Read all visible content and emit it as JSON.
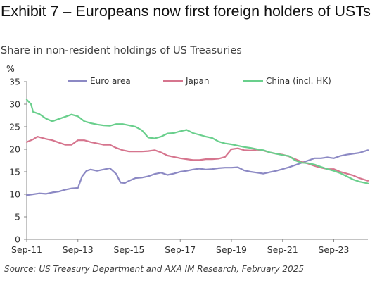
{
  "exhibit": {
    "title": "Exhibit 7 – Europeans now first foreign holders of USTs"
  },
  "source": "Source: US Treasury Department and AXA IM Research, February 2025",
  "colors": {
    "euro": "#8c89c4",
    "japan": "#d6758e",
    "china": "#69cf8c",
    "axis": "#8a8a8a"
  },
  "chart_data": {
    "type": "line",
    "title": "Share in non-resident holdings of US Treasuries",
    "ylabel": "%",
    "ylim": [
      0,
      35
    ],
    "yticks": [
      0,
      5,
      10,
      15,
      20,
      25,
      30,
      35
    ],
    "xlim": [
      "2011-09",
      "2025-01"
    ],
    "xticks": [
      "Sep-11",
      "Sep-13",
      "Sep-15",
      "Sep-17",
      "Sep-19",
      "Sep-21",
      "Sep-23"
    ],
    "xtick_dates": [
      "2011-09",
      "2013-09",
      "2015-09",
      "2017-09",
      "2019-09",
      "2021-09",
      "2023-09"
    ],
    "legend_position": "top",
    "series": [
      {
        "name": "Euro area",
        "color": "#8c89c4",
        "points": [
          [
            "2011-09",
            9.8
          ],
          [
            "2011-12",
            10.0
          ],
          [
            "2012-03",
            10.2
          ],
          [
            "2012-06",
            10.1
          ],
          [
            "2012-09",
            10.4
          ],
          [
            "2012-12",
            10.6
          ],
          [
            "2013-03",
            11.0
          ],
          [
            "2013-06",
            11.3
          ],
          [
            "2013-09",
            11.4
          ],
          [
            "2013-11",
            14.0
          ],
          [
            "2014-01",
            15.2
          ],
          [
            "2014-03",
            15.5
          ],
          [
            "2014-06",
            15.2
          ],
          [
            "2014-09",
            15.5
          ],
          [
            "2014-12",
            15.8
          ],
          [
            "2015-03",
            14.5
          ],
          [
            "2015-05",
            12.6
          ],
          [
            "2015-07",
            12.5
          ],
          [
            "2015-09",
            13.0
          ],
          [
            "2015-12",
            13.6
          ],
          [
            "2016-03",
            13.7
          ],
          [
            "2016-06",
            14.0
          ],
          [
            "2016-09",
            14.5
          ],
          [
            "2016-12",
            14.8
          ],
          [
            "2017-03",
            14.3
          ],
          [
            "2017-06",
            14.6
          ],
          [
            "2017-09",
            15.0
          ],
          [
            "2017-12",
            15.2
          ],
          [
            "2018-03",
            15.5
          ],
          [
            "2018-06",
            15.7
          ],
          [
            "2018-09",
            15.5
          ],
          [
            "2018-12",
            15.6
          ],
          [
            "2019-03",
            15.8
          ],
          [
            "2019-06",
            15.9
          ],
          [
            "2019-09",
            15.9
          ],
          [
            "2019-12",
            16.0
          ],
          [
            "2020-03",
            15.3
          ],
          [
            "2020-06",
            15.0
          ],
          [
            "2020-09",
            14.8
          ],
          [
            "2020-12",
            14.6
          ],
          [
            "2021-03",
            14.9
          ],
          [
            "2021-06",
            15.2
          ],
          [
            "2021-09",
            15.6
          ],
          [
            "2021-12",
            16.0
          ],
          [
            "2022-03",
            16.5
          ],
          [
            "2022-06",
            17.0
          ],
          [
            "2022-09",
            17.5
          ],
          [
            "2022-12",
            18.0
          ],
          [
            "2023-03",
            18.0
          ],
          [
            "2023-06",
            18.2
          ],
          [
            "2023-09",
            18.0
          ],
          [
            "2023-12",
            18.5
          ],
          [
            "2024-03",
            18.8
          ],
          [
            "2024-06",
            19.0
          ],
          [
            "2024-09",
            19.2
          ],
          [
            "2025-01",
            19.8
          ]
        ]
      },
      {
        "name": "Japan",
        "color": "#d6758e",
        "points": [
          [
            "2011-09",
            21.6
          ],
          [
            "2011-12",
            22.2
          ],
          [
            "2012-02",
            22.8
          ],
          [
            "2012-06",
            22.3
          ],
          [
            "2012-09",
            22.0
          ],
          [
            "2012-12",
            21.5
          ],
          [
            "2013-03",
            21.0
          ],
          [
            "2013-06",
            21.0
          ],
          [
            "2013-09",
            22.0
          ],
          [
            "2013-12",
            22.0
          ],
          [
            "2014-03",
            21.6
          ],
          [
            "2014-06",
            21.3
          ],
          [
            "2014-09",
            21.0
          ],
          [
            "2014-12",
            21.0
          ],
          [
            "2015-03",
            20.3
          ],
          [
            "2015-06",
            19.8
          ],
          [
            "2015-09",
            19.5
          ],
          [
            "2015-12",
            19.5
          ],
          [
            "2016-03",
            19.5
          ],
          [
            "2016-06",
            19.6
          ],
          [
            "2016-09",
            19.8
          ],
          [
            "2016-12",
            19.3
          ],
          [
            "2017-03",
            18.6
          ],
          [
            "2017-06",
            18.3
          ],
          [
            "2017-09",
            18.0
          ],
          [
            "2017-12",
            17.8
          ],
          [
            "2018-03",
            17.6
          ],
          [
            "2018-06",
            17.6
          ],
          [
            "2018-09",
            17.8
          ],
          [
            "2018-12",
            17.8
          ],
          [
            "2019-03",
            17.9
          ],
          [
            "2019-06",
            18.3
          ],
          [
            "2019-09",
            20.0
          ],
          [
            "2019-12",
            20.2
          ],
          [
            "2020-03",
            19.8
          ],
          [
            "2020-06",
            19.7
          ],
          [
            "2020-09",
            19.9
          ],
          [
            "2020-12",
            19.7
          ],
          [
            "2021-03",
            19.3
          ],
          [
            "2021-06",
            19.0
          ],
          [
            "2021-09",
            18.8
          ],
          [
            "2021-12",
            18.4
          ],
          [
            "2022-03",
            17.8
          ],
          [
            "2022-06",
            17.2
          ],
          [
            "2022-09",
            16.8
          ],
          [
            "2022-12",
            16.3
          ],
          [
            "2023-03",
            15.9
          ],
          [
            "2023-06",
            15.6
          ],
          [
            "2023-09",
            15.6
          ],
          [
            "2023-12",
            15.0
          ],
          [
            "2024-03",
            14.6
          ],
          [
            "2024-06",
            14.2
          ],
          [
            "2024-09",
            13.6
          ],
          [
            "2025-01",
            13.0
          ]
        ]
      },
      {
        "name": "China (incl. HK)",
        "color": "#69cf8c",
        "points": [
          [
            "2011-09",
            31.0
          ],
          [
            "2011-11",
            30.0
          ],
          [
            "2011-12",
            28.3
          ],
          [
            "2012-03",
            27.8
          ],
          [
            "2012-06",
            26.8
          ],
          [
            "2012-09",
            26.2
          ],
          [
            "2012-12",
            26.7
          ],
          [
            "2013-03",
            27.2
          ],
          [
            "2013-06",
            27.7
          ],
          [
            "2013-09",
            27.3
          ],
          [
            "2013-12",
            26.2
          ],
          [
            "2014-03",
            25.8
          ],
          [
            "2014-06",
            25.5
          ],
          [
            "2014-09",
            25.3
          ],
          [
            "2014-12",
            25.2
          ],
          [
            "2015-03",
            25.6
          ],
          [
            "2015-06",
            25.6
          ],
          [
            "2015-09",
            25.3
          ],
          [
            "2015-12",
            25.0
          ],
          [
            "2016-03",
            24.2
          ],
          [
            "2016-06",
            22.6
          ],
          [
            "2016-09",
            22.4
          ],
          [
            "2016-12",
            22.8
          ],
          [
            "2017-03",
            23.5
          ],
          [
            "2017-06",
            23.6
          ],
          [
            "2017-09",
            24.0
          ],
          [
            "2017-12",
            24.3
          ],
          [
            "2018-03",
            23.6
          ],
          [
            "2018-06",
            23.2
          ],
          [
            "2018-09",
            22.8
          ],
          [
            "2018-12",
            22.5
          ],
          [
            "2019-03",
            21.7
          ],
          [
            "2019-06",
            21.3
          ],
          [
            "2019-09",
            21.1
          ],
          [
            "2019-12",
            20.8
          ],
          [
            "2020-03",
            20.5
          ],
          [
            "2020-06",
            20.3
          ],
          [
            "2020-09",
            20.0
          ],
          [
            "2020-12",
            19.8
          ],
          [
            "2021-03",
            19.3
          ],
          [
            "2021-06",
            19.0
          ],
          [
            "2021-09",
            18.7
          ],
          [
            "2021-12",
            18.5
          ],
          [
            "2022-03",
            17.5
          ],
          [
            "2022-06",
            17.0
          ],
          [
            "2022-09",
            16.9
          ],
          [
            "2022-12",
            16.6
          ],
          [
            "2023-03",
            16.1
          ],
          [
            "2023-06",
            15.6
          ],
          [
            "2023-09",
            15.2
          ],
          [
            "2023-12",
            14.7
          ],
          [
            "2024-03",
            14.0
          ],
          [
            "2024-06",
            13.3
          ],
          [
            "2024-09",
            12.8
          ],
          [
            "2025-01",
            12.4
          ]
        ]
      }
    ]
  }
}
